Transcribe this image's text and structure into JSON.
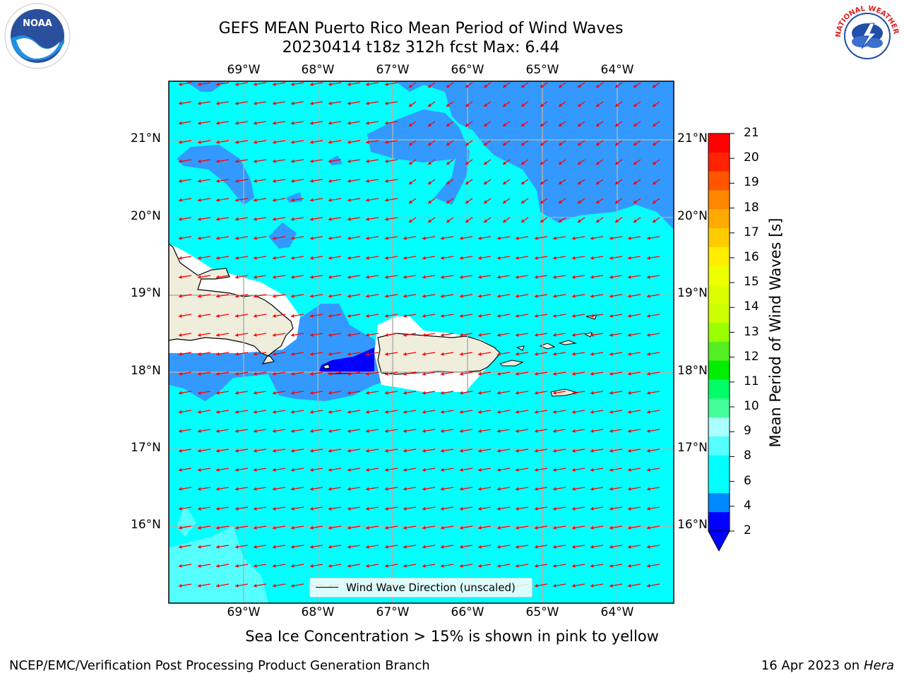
{
  "title": {
    "line1": "GEFS MEAN Puerto Rico Mean Period of Wind Waves",
    "line2": "20230414 t18z 312h fcst   Max: 6.44"
  },
  "map": {
    "lon_labels": [
      "69°W",
      "68°W",
      "67°W",
      "66°W",
      "65°W",
      "64°W"
    ],
    "lat_labels": [
      "21°N",
      "20°N",
      "19°N",
      "18°N",
      "17°N",
      "16°N"
    ],
    "legend": "Wind Wave Direction (unscaled)",
    "colors": {
      "ocean_light": "#00ffff",
      "ocean_mid": "#3399ff",
      "ocean_dark": "#0000ff",
      "land": "#efeddc",
      "arrow": "#ff0000",
      "grid": "#b0b0b0"
    }
  },
  "colorbar": {
    "label": "Mean Period of Wind Waves [s]",
    "ticks": [
      "21",
      "20",
      "19",
      "18",
      "17",
      "16",
      "15",
      "14",
      "13",
      "12",
      "11",
      "10",
      "9",
      "8",
      "6",
      "4",
      "2"
    ],
    "colors": [
      "#ff0000",
      "#ff2200",
      "#ff5500",
      "#ff8800",
      "#ffaa00",
      "#ffcc00",
      "#ffee00",
      "#eeff00",
      "#ddff00",
      "#ccff00",
      "#99ff00",
      "#55ee22",
      "#00ee00",
      "#00ff66",
      "#44ff99",
      "#aaffff",
      "#55ffff",
      "#00ffff",
      "#00ffff",
      "#0088ff",
      "#0000ff"
    ]
  },
  "note": "Sea Ice Concentration > 15% is shown in pink to yellow",
  "footer": {
    "left": "NCEP/EMC/Verification Post Processing Product Generation Branch",
    "right_prefix": "16 Apr 2023 on ",
    "right_host": "Hera"
  },
  "logos": {
    "noaa": "NOAA",
    "nws": "NATIONAL WEATHER SERVICE"
  }
}
